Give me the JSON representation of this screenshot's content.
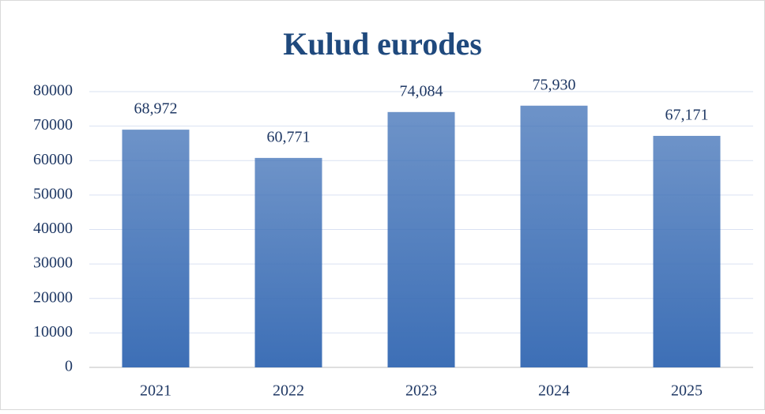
{
  "chart_data": {
    "type": "bar",
    "title": "Kulud eurodes",
    "categories": [
      "2021",
      "2022",
      "2023",
      "2024",
      "2025"
    ],
    "values": [
      68972,
      60771,
      74084,
      75930,
      67171
    ],
    "value_labels": [
      "68,972",
      "60,771",
      "74,084",
      "75,930",
      "67,171"
    ],
    "color": "#3d6fb6",
    "ylim": [
      0,
      80000
    ],
    "yticks": [
      0,
      10000,
      20000,
      30000,
      40000,
      50000,
      60000,
      70000,
      80000
    ],
    "grid": true
  }
}
